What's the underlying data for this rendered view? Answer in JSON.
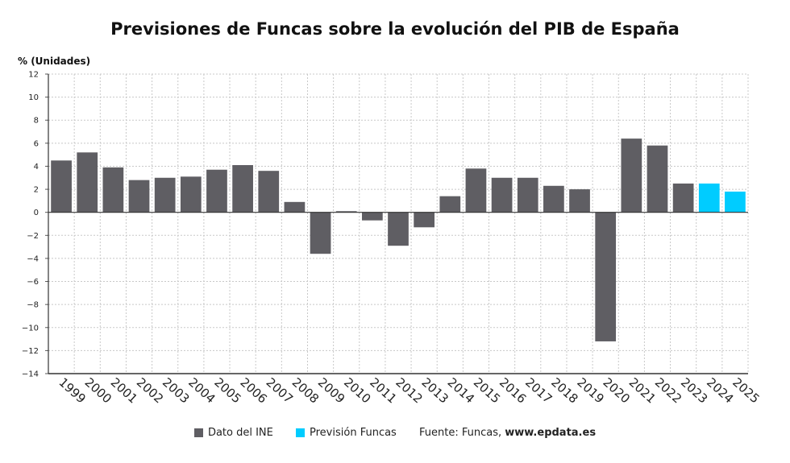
{
  "chart_data": {
    "type": "bar",
    "title": "Previsiones de Funcas sobre la evolución del PIB de España",
    "ylabel": "% (Unidades)",
    "ylim": [
      -14,
      12
    ],
    "yticks": [
      12,
      10,
      8,
      6,
      4,
      2,
      0,
      -2,
      -4,
      -6,
      -8,
      -10,
      -12,
      -14
    ],
    "grid": true,
    "legend_position": "bottom",
    "categories": [
      "1999",
      "2000",
      "2001",
      "2002",
      "2003",
      "2004",
      "2005",
      "2006",
      "2007",
      "2008",
      "2009",
      "2010",
      "2011",
      "2012",
      "2013",
      "2014",
      "2015",
      "2016",
      "2017",
      "2018",
      "2019",
      "2020",
      "2021",
      "2022",
      "2023",
      "2024",
      "2025"
    ],
    "series": [
      {
        "name": "Dato del INE",
        "color": "#5f5e63",
        "values": [
          4.5,
          5.2,
          3.9,
          2.8,
          3.0,
          3.1,
          3.7,
          4.1,
          3.6,
          0.9,
          -3.6,
          0.1,
          -0.7,
          -2.9,
          -1.3,
          1.4,
          3.8,
          3.0,
          3.0,
          2.3,
          2.0,
          -11.2,
          6.4,
          5.8,
          2.5,
          null,
          null
        ]
      },
      {
        "name": "Previsión Funcas",
        "color": "#00ccff",
        "values": [
          null,
          null,
          null,
          null,
          null,
          null,
          null,
          null,
          null,
          null,
          null,
          null,
          null,
          null,
          null,
          null,
          null,
          null,
          null,
          null,
          null,
          null,
          null,
          null,
          null,
          2.5,
          1.8
        ]
      }
    ]
  },
  "footer": {
    "legend": [
      {
        "label": "Dato del INE",
        "color": "#5f5e63"
      },
      {
        "label": "Previsión Funcas",
        "color": "#00ccff"
      }
    ],
    "source_prefix": "Fuente: Funcas, ",
    "source_site": "www.epdata.es"
  }
}
